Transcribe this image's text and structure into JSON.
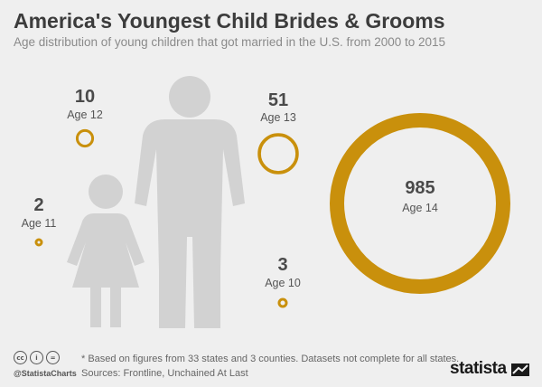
{
  "title": "America's Youngest Child Brides & Grooms",
  "subtitle": "Age distribution of young children that got married in the U.S. from 2000 to 2015",
  "colors": {
    "ring": "#c9900c",
    "figure": "#d2d2d2",
    "background": "#efefef"
  },
  "chart_data": {
    "type": "bubble",
    "categories": [
      "Age 10",
      "Age 11",
      "Age 12",
      "Age 13",
      "Age 14"
    ],
    "values": [
      3,
      2,
      10,
      51,
      985
    ],
    "labels": [
      "3",
      "2",
      "10",
      "51",
      "985"
    ]
  },
  "footer": {
    "cc_icons": [
      "cc",
      "i",
      "="
    ],
    "handle": "@StatistaCharts",
    "note": "* Based on figures from 33 states and 3 counties. Datasets not complete for all states.",
    "sources": "Sources: Frontline, Unchained At Last",
    "brand": "statista"
  }
}
